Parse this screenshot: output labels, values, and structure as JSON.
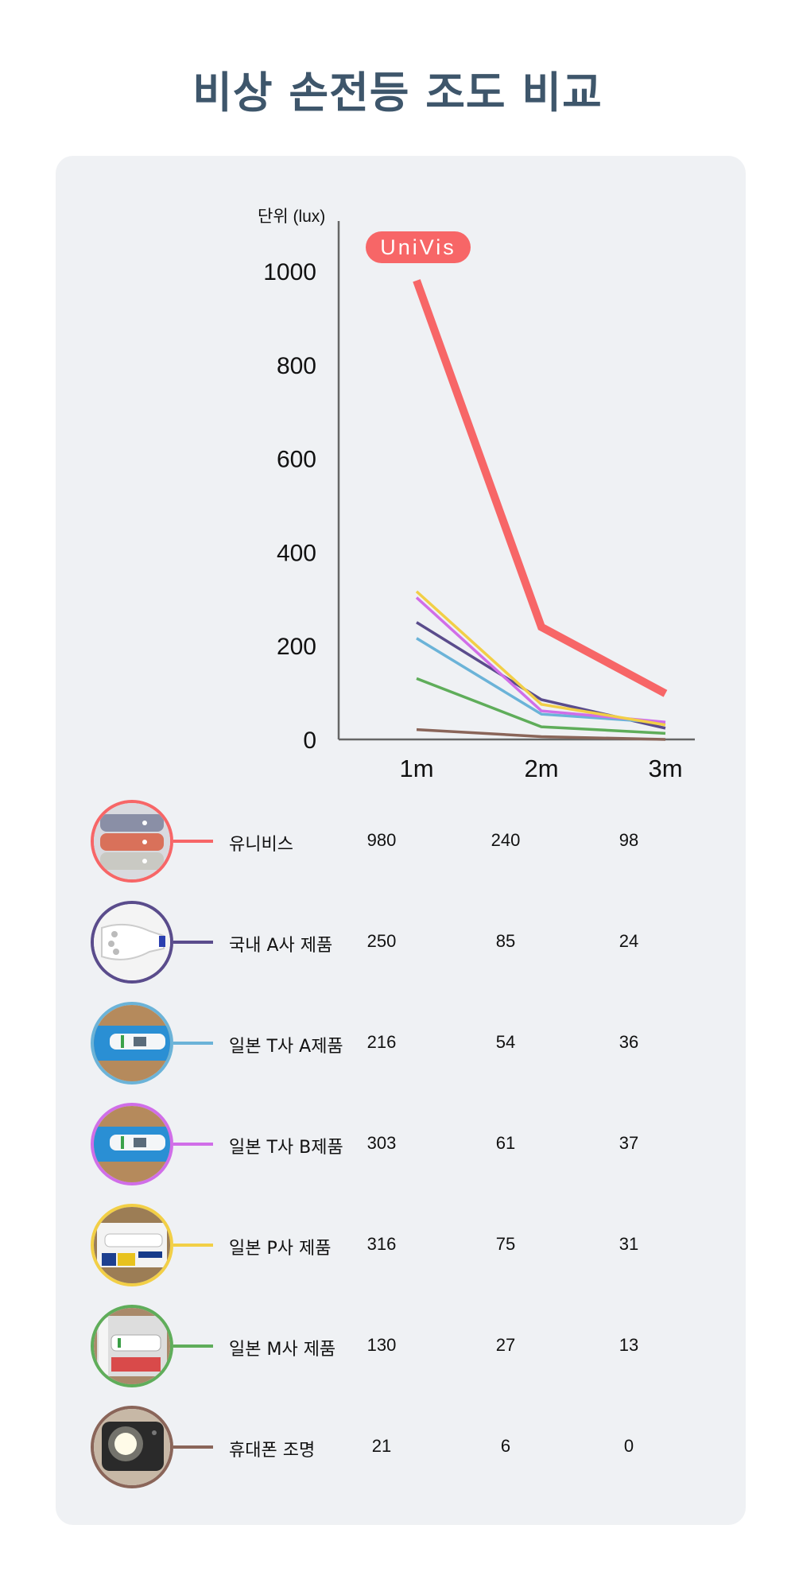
{
  "title": "비상 손전등 조도 비교",
  "brand_badge": "UniVis",
  "chart_data": {
    "type": "line",
    "ylabel": "단위 (lux)",
    "categories": [
      "1m",
      "2m",
      "3m"
    ],
    "y_ticks": [
      "0",
      "200",
      "400",
      "600",
      "800",
      "1000"
    ],
    "ylim": [
      0,
      1000
    ],
    "grid": false,
    "series": [
      {
        "name": "유니비스",
        "color": "#f76667",
        "values": [
          980,
          240,
          98
        ],
        "highlight": true,
        "icon": "flashlight-set-icon"
      },
      {
        "name": "국내 A사 제품",
        "color": "#5a4c8c",
        "values": [
          250,
          85,
          24
        ],
        "icon": "white-flashlight-icon"
      },
      {
        "name": "일본 T사 A제품",
        "color": "#6bb3d8",
        "values": [
          216,
          54,
          36
        ],
        "icon": "blue-box-flashlight-icon"
      },
      {
        "name": "일본 T사 B제품",
        "color": "#d06ee8",
        "values": [
          303,
          61,
          37
        ],
        "icon": "blue-box-flashlight-icon"
      },
      {
        "name": "일본 P사 제품",
        "color": "#f2cf46",
        "values": [
          316,
          75,
          31
        ],
        "icon": "packaged-flashlight-icon"
      },
      {
        "name": "일본 M사 제품",
        "color": "#5fad5a",
        "values": [
          130,
          27,
          13
        ],
        "icon": "boxed-led-flashlight-icon"
      },
      {
        "name": "휴대폰 조명",
        "color": "#8a6559",
        "values": [
          21,
          6,
          0
        ],
        "icon": "phone-flash-icon"
      }
    ]
  }
}
